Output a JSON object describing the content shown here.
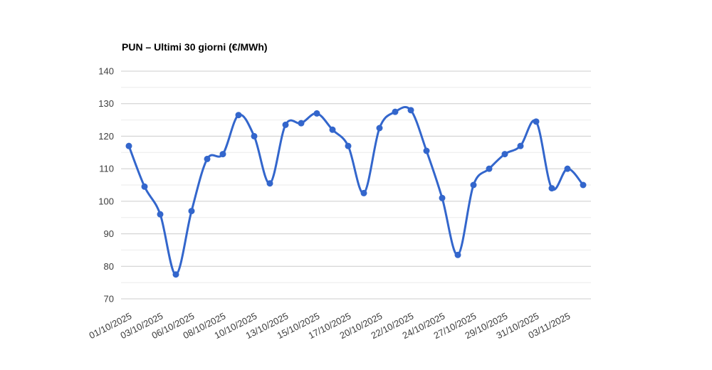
{
  "chart_data": {
    "type": "line",
    "title": "PUN – Ultimi 30 giorni (€/MWh)",
    "ylabel": "",
    "xlabel": "",
    "series": [
      {
        "name": "PUN",
        "color": "#3366cc",
        "values": [
          117,
          104.5,
          96,
          77.5,
          97,
          113,
          114.5,
          126.5,
          120,
          105.5,
          123.5,
          124,
          127,
          122,
          117,
          102.5,
          122.5,
          127.5,
          128,
          115.5,
          101,
          83.5,
          105,
          110,
          114.5,
          117,
          124.5,
          104,
          110,
          105
        ]
      }
    ],
    "x_tick_labels": [
      "01/10/2025",
      "03/10/2025",
      "06/10/2025",
      "08/10/2025",
      "10/10/2025",
      "13/10/2025",
      "15/10/2025",
      "17/10/2025",
      "20/10/2025",
      "22/10/2025",
      "24/10/2025",
      "27/10/2025",
      "29/10/2025",
      "31/10/2025",
      "03/11/2025"
    ],
    "x_tick_every": 2,
    "y_ticks": [
      70,
      80,
      90,
      100,
      110,
      120,
      130,
      140
    ],
    "y_minor_ticks": [
      75,
      85,
      95,
      105,
      115,
      125,
      135
    ],
    "ylim": [
      70,
      140
    ],
    "grid": {
      "on": true,
      "major_color": "#cccccc",
      "minor_color": "#ebebeb"
    },
    "axis_text_color": "#3d3d3d",
    "legend": "none",
    "smooth": true,
    "point_radius": 4.5,
    "line_width": 3
  }
}
